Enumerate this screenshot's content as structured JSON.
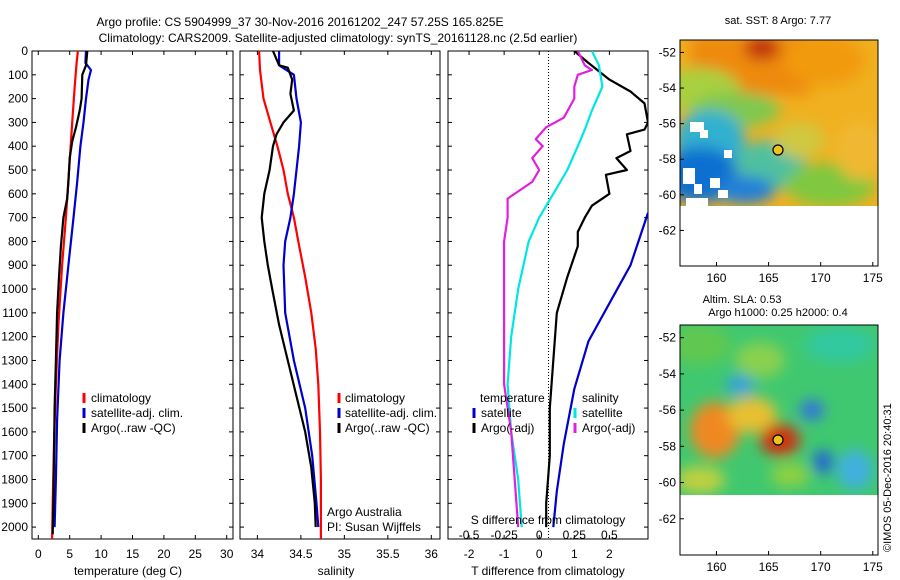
{
  "header": {
    "line1": "Argo profile: CS 5904999_37 30-Nov-2016 20161202_247 57.25S 165.825E",
    "line2": "Climatology: CARS2009. Satellite-adjusted climatology: synTS_20161128.nc (2.5d earlier)"
  },
  "colors": {
    "climatology": "#ff0000",
    "satellite": "#0000cc",
    "argo": "#000000",
    "t_diff": "#00e5e5",
    "s_diff": "#e020e0"
  },
  "chart_data": [
    {
      "type": "line",
      "name": "temperature-profile",
      "xlabel": "temperature (deg C)",
      "ylabel": "",
      "xlim": [
        -1,
        31
      ],
      "ylim": [
        2050,
        0
      ],
      "xticks": [
        0,
        5,
        10,
        15,
        20,
        25,
        30
      ],
      "yticks": [
        0,
        100,
        200,
        300,
        400,
        500,
        600,
        700,
        800,
        900,
        1000,
        1100,
        1200,
        1300,
        1400,
        1500,
        1600,
        1700,
        1800,
        1900,
        2000
      ],
      "legend": [
        "climatology",
        "satellite-adj. clim.",
        "Argo(..raw -QC)"
      ],
      "legend_position": "lower-middle",
      "series": [
        {
          "name": "climatology",
          "color": "#ff0000",
          "points": [
            [
              6.3,
              0
            ],
            [
              6.1,
              50
            ],
            [
              5.8,
              150
            ],
            [
              5.4,
              300
            ],
            [
              4.9,
              500
            ],
            [
              4.4,
              700
            ],
            [
              3.8,
              900
            ],
            [
              3.2,
              1150
            ],
            [
              2.8,
              1400
            ],
            [
              2.5,
              1650
            ],
            [
              2.3,
              1900
            ],
            [
              2.2,
              2050
            ]
          ]
        },
        {
          "name": "satellite-adj. clim.",
          "color": "#0000cc",
          "points": [
            [
              7.6,
              0
            ],
            [
              7.5,
              50
            ],
            [
              8.4,
              80
            ],
            [
              8.0,
              120
            ],
            [
              7.6,
              200
            ],
            [
              7.2,
              300
            ],
            [
              6.7,
              400
            ],
            [
              6.2,
              550
            ],
            [
              5.6,
              700
            ],
            [
              4.8,
              900
            ],
            [
              4.0,
              1100
            ],
            [
              3.4,
              1300
            ],
            [
              3.0,
              1550
            ],
            [
              2.8,
              1800
            ],
            [
              2.6,
              2000
            ]
          ]
        },
        {
          "name": "Argo(..raw -QC)",
          "color": "#000000",
          "points": [
            [
              7.8,
              0
            ],
            [
              7.6,
              60
            ],
            [
              7.0,
              100
            ],
            [
              6.9,
              200
            ],
            [
              6.6,
              250
            ],
            [
              6.0,
              320
            ],
            [
              5.4,
              380
            ],
            [
              5.0,
              450
            ],
            [
              4.8,
              550
            ],
            [
              4.6,
              620
            ],
            [
              4.0,
              700
            ],
            [
              3.6,
              820
            ],
            [
              3.3,
              950
            ],
            [
              3.0,
              1100
            ],
            [
              2.8,
              1300
            ],
            [
              2.6,
              1500
            ],
            [
              2.5,
              1700
            ],
            [
              2.4,
              1900
            ],
            [
              2.3,
              2030
            ]
          ]
        }
      ]
    },
    {
      "type": "line",
      "name": "salinity-profile",
      "xlabel": "salinity",
      "ylabel": "",
      "xlim": [
        33.8,
        36.1
      ],
      "ylim": [
        2050,
        0
      ],
      "xticks": [
        34,
        34.5,
        35,
        35.5,
        36
      ],
      "legend": [
        "climatology",
        "satellite-adj. clim.",
        "Argo(..raw -QC)"
      ],
      "legend_position": "lower-right",
      "annotation_lines": [
        "Argo Australia",
        "PI: Susan Wijffels"
      ],
      "series": [
        {
          "name": "climatology",
          "color": "#ff0000",
          "points": [
            [
              34.02,
              0
            ],
            [
              34.03,
              80
            ],
            [
              34.07,
              200
            ],
            [
              34.15,
              300
            ],
            [
              34.23,
              400
            ],
            [
              34.3,
              500
            ],
            [
              34.35,
              600
            ],
            [
              34.42,
              700
            ],
            [
              34.47,
              800
            ],
            [
              34.55,
              950
            ],
            [
              34.62,
              1100
            ],
            [
              34.67,
              1250
            ],
            [
              34.7,
              1400
            ],
            [
              34.72,
              1600
            ],
            [
              34.73,
              1800
            ],
            [
              34.73,
              2050
            ]
          ]
        },
        {
          "name": "satellite-adj. clim.",
          "color": "#0000cc",
          "points": [
            [
              34.25,
              0
            ],
            [
              34.25,
              60
            ],
            [
              34.42,
              100
            ],
            [
              34.45,
              200
            ],
            [
              34.5,
              300
            ],
            [
              34.48,
              400
            ],
            [
              34.45,
              500
            ],
            [
              34.42,
              600
            ],
            [
              34.38,
              700
            ],
            [
              34.32,
              800
            ],
            [
              34.3,
              900
            ],
            [
              34.32,
              1100
            ],
            [
              34.42,
              1300
            ],
            [
              34.55,
              1500
            ],
            [
              34.63,
              1700
            ],
            [
              34.68,
              1900
            ],
            [
              34.7,
              2000
            ]
          ]
        },
        {
          "name": "Argo(..raw -QC)",
          "color": "#000000",
          "points": [
            [
              34.18,
              0
            ],
            [
              34.25,
              60
            ],
            [
              34.35,
              70
            ],
            [
              34.4,
              120
            ],
            [
              34.38,
              180
            ],
            [
              34.42,
              250
            ],
            [
              34.3,
              300
            ],
            [
              34.22,
              350
            ],
            [
              34.18,
              400
            ],
            [
              34.14,
              500
            ],
            [
              34.08,
              600
            ],
            [
              34.05,
              700
            ],
            [
              34.08,
              800
            ],
            [
              34.12,
              900
            ],
            [
              34.17,
              1000
            ],
            [
              34.25,
              1150
            ],
            [
              34.35,
              1300
            ],
            [
              34.45,
              1450
            ],
            [
              34.55,
              1600
            ],
            [
              34.62,
              1750
            ],
            [
              34.66,
              1900
            ],
            [
              34.67,
              2000
            ]
          ]
        }
      ]
    },
    {
      "type": "line",
      "name": "difference-profile",
      "xlabel": "T difference from climatology",
      "xlabel_top": "S difference from climatology",
      "ylabel": "",
      "xlim": [
        -2.6,
        3.1
      ],
      "ylim": [
        2050,
        0
      ],
      "xticks": [
        -2,
        -1,
        0,
        1,
        2
      ],
      "xticks_secondary": [
        "-0.5",
        "-0.25",
        "0",
        "0.25",
        "0.5"
      ],
      "legend_temperature": {
        "header": "temperature",
        "items": [
          "satellite",
          "Argo(-adj)"
        ]
      },
      "legend_salinity": {
        "header": "salinity",
        "items": [
          "satellite",
          "Argo(-adj)"
        ]
      },
      "series": [
        {
          "name": "temperature satellite",
          "color": "#0000cc",
          "points": [
            [
              3.1,
              680
            ],
            [
              2.6,
              900
            ],
            [
              2.0,
              1060
            ],
            [
              1.4,
              1220
            ],
            [
              1.0,
              1420
            ],
            [
              0.7,
              1650
            ],
            [
              0.5,
              1850
            ],
            [
              0.4,
              2000
            ]
          ]
        },
        {
          "name": "temperature Argo(-adj)",
          "color": "#000000",
          "points": [
            [
              1.0,
              0
            ],
            [
              1.4,
              50
            ],
            [
              2.0,
              120
            ],
            [
              2.6,
              170
            ],
            [
              3.0,
              220
            ],
            [
              3.1,
              300
            ],
            [
              3.0,
              330
            ],
            [
              2.5,
              350
            ],
            [
              2.6,
              420
            ],
            [
              2.2,
              450
            ],
            [
              2.5,
              500
            ],
            [
              1.9,
              520
            ],
            [
              2.0,
              600
            ],
            [
              1.5,
              650
            ],
            [
              1.3,
              700
            ],
            [
              1.1,
              760
            ],
            [
              1.1,
              820
            ],
            [
              0.8,
              950
            ],
            [
              0.5,
              1100
            ],
            [
              0.4,
              1300
            ],
            [
              0.3,
              1500
            ],
            [
              0.3,
              1700
            ],
            [
              0.2,
              1900
            ],
            [
              0.2,
              2000
            ]
          ]
        },
        {
          "name": "salinity satellite",
          "color": "#00e5e5",
          "points": [
            [
              1.5,
              0
            ],
            [
              1.7,
              60
            ],
            [
              1.8,
              150
            ],
            [
              1.5,
              250
            ],
            [
              1.3,
              330
            ],
            [
              1.1,
              400
            ],
            [
              0.8,
              500
            ],
            [
              0.4,
              600
            ],
            [
              0.0,
              700
            ],
            [
              -0.3,
              800
            ],
            [
              -0.6,
              1000
            ],
            [
              -0.8,
              1200
            ],
            [
              -0.9,
              1400
            ],
            [
              -0.8,
              1600
            ],
            [
              -0.6,
              1800
            ],
            [
              -0.5,
              2000
            ]
          ]
        },
        {
          "name": "salinity Argo(-adj)",
          "color": "#e020e0",
          "points": [
            [
              1.1,
              0
            ],
            [
              1.3,
              60
            ],
            [
              1.5,
              80
            ],
            [
              1.1,
              100
            ],
            [
              1.0,
              150
            ],
            [
              1.0,
              200
            ],
            [
              0.7,
              280
            ],
            [
              0.2,
              320
            ],
            [
              -0.1,
              370
            ],
            [
              0.1,
              400
            ],
            [
              -0.2,
              450
            ],
            [
              0.0,
              500
            ],
            [
              -0.2,
              550
            ],
            [
              -0.6,
              590
            ],
            [
              -0.9,
              620
            ],
            [
              -0.9,
              700
            ],
            [
              -1.0,
              800
            ],
            [
              -1.0,
              900
            ],
            [
              -1.0,
              1000
            ],
            [
              -1.0,
              1200
            ],
            [
              -1.0,
              1400
            ],
            [
              -0.8,
              1600
            ],
            [
              -0.7,
              1800
            ],
            [
              -0.6,
              2000
            ]
          ]
        }
      ]
    },
    {
      "type": "heatmap",
      "name": "sst-map",
      "title": "sat. SST: 8 Argo: 7.77",
      "xticks": [
        160,
        165,
        170,
        175
      ],
      "yticks": [
        -52,
        -54,
        -56,
        -58,
        -60,
        -62
      ],
      "xlim": [
        156.5,
        175.5
      ],
      "ylim": [
        -64,
        -51.3
      ],
      "marker": {
        "lon": 165.825,
        "lat": -57.25
      }
    },
    {
      "type": "heatmap",
      "name": "sla-map",
      "title": "Altim. SLA: 0.53",
      "subtitle": "Argo h1000: 0.25 h2000: 0.4",
      "xticks": [
        160,
        165,
        170,
        175
      ],
      "yticks": [
        -52,
        -54,
        -56,
        -58,
        -60,
        -62
      ],
      "xlim": [
        156.5,
        175.5
      ],
      "ylim": [
        -64,
        -51.3
      ],
      "marker": {
        "lon": 165.825,
        "lat": -57.25
      }
    }
  ],
  "footer": {
    "credit": "©IMOS 05-Dec-2016 20:40:31"
  }
}
